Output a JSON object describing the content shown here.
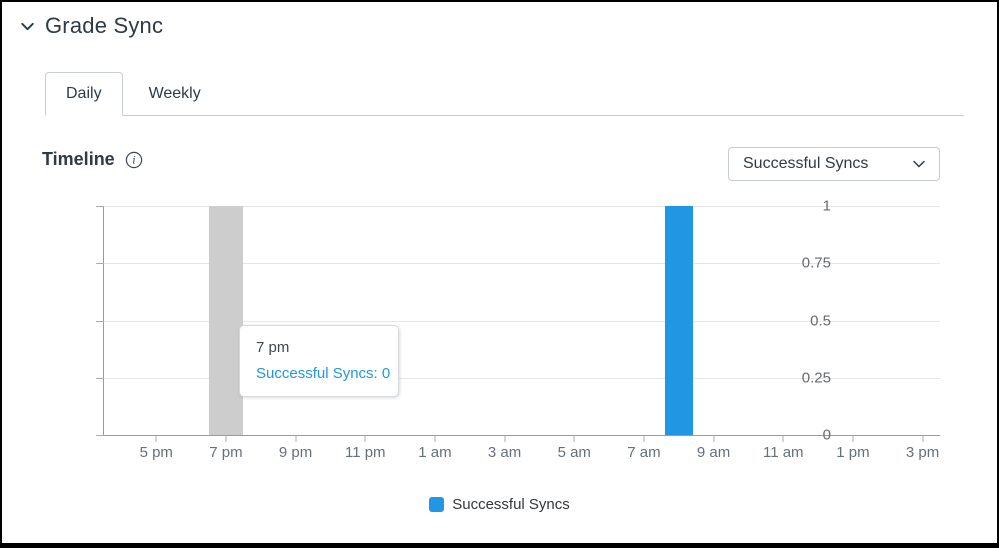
{
  "colors": {
    "accent_blue": "#2196E3",
    "ink": "#2D3B45",
    "hover_band_gray": "#CDCDCD",
    "grid_line": "#E6E6E6",
    "axis_line": "#9B9B9B",
    "control_border": "#C7CDD1"
  },
  "header": {
    "title": "Grade Sync",
    "collapse_icon": "chevron-down-icon"
  },
  "tabs": [
    {
      "label": "Daily",
      "active": true
    },
    {
      "label": "Weekly",
      "active": false
    }
  ],
  "timeline_section": {
    "title": "Timeline",
    "info_icon": "info-circle-icon"
  },
  "metric_dropdown": {
    "selected": "Successful Syncs",
    "icon": "chevron-down-icon"
  },
  "chart_data": {
    "type": "bar",
    "title": "Timeline",
    "xlabel": "",
    "ylabel": "",
    "ylim": [
      0,
      1
    ],
    "grid": "horizontal",
    "y_ticks": [
      {
        "value": 1,
        "label": "1"
      },
      {
        "value": 0.75,
        "label": "0.75"
      },
      {
        "value": 0.5,
        "label": "0.5"
      },
      {
        "value": 0.25,
        "label": "0.25"
      },
      {
        "value": 0,
        "label": "0"
      }
    ],
    "x_slot_count": 24,
    "x_ticks": [
      {
        "slot": 1,
        "label": "5 pm"
      },
      {
        "slot": 3,
        "label": "7 pm"
      },
      {
        "slot": 5,
        "label": "9 pm"
      },
      {
        "slot": 7,
        "label": "11 pm"
      },
      {
        "slot": 9,
        "label": "1 am"
      },
      {
        "slot": 11,
        "label": "3 am"
      },
      {
        "slot": 13,
        "label": "5 am"
      },
      {
        "slot": 15,
        "label": "7 am"
      },
      {
        "slot": 17,
        "label": "9 am"
      },
      {
        "slot": 19,
        "label": "11 am"
      },
      {
        "slot": 21,
        "label": "1 pm"
      },
      {
        "slot": 23,
        "label": "3 pm"
      }
    ],
    "series": [
      {
        "name": "Successful Syncs",
        "color": "#2196E3",
        "bars": [
          {
            "slot": 16,
            "hour_label": "8 am",
            "value": 1
          }
        ]
      }
    ],
    "hovered_column": {
      "slot": 3,
      "hour_label": "7 pm",
      "value": 0,
      "band_color": "#CDCDCD"
    },
    "legend_position": "bottom-center"
  },
  "tooltip": {
    "title": "7 pm",
    "series_name": "Successful Syncs",
    "value": "0",
    "value_line": "Successful Syncs: 0"
  },
  "legend": {
    "items": [
      {
        "label": "Successful Syncs",
        "color": "#2196E3"
      }
    ]
  }
}
